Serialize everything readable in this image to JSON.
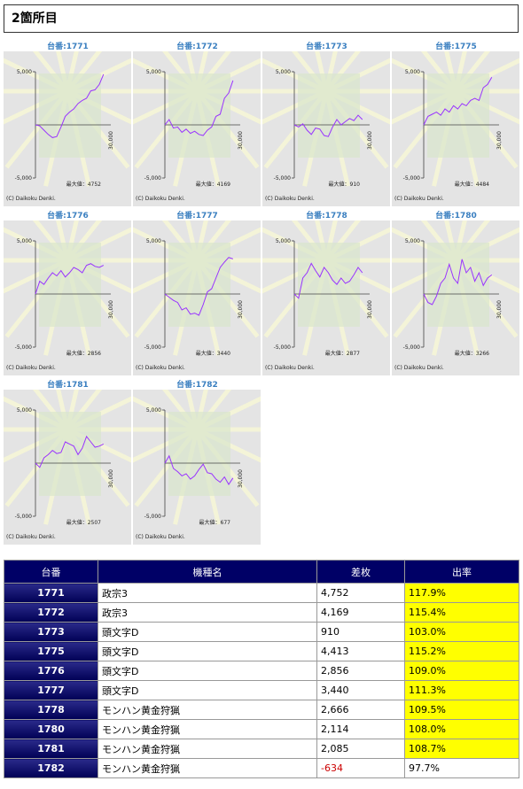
{
  "header": {
    "title": "2箇所目"
  },
  "graph_axis": {
    "yticks": [
      {
        "value": 5000,
        "label": "5,000"
      },
      {
        "value": -5000,
        "label": "-5,000"
      }
    ],
    "xmax": {
      "value": 30000,
      "label": "30,000"
    },
    "credit": "(C) Daikoku Denki.",
    "line_color": "#9933ff"
  },
  "graphs": [
    {
      "label": "台番:1771",
      "max_text": "最大値：4752",
      "values": [
        0,
        -100,
        -500,
        -900,
        -1200,
        -1100,
        -200,
        800,
        1200,
        1500,
        2000,
        2300,
        2500,
        3200,
        3300,
        3800,
        4752
      ]
    },
    {
      "label": "台番:1772",
      "max_text": "最大値：4169",
      "values": [
        0,
        500,
        -300,
        -200,
        -700,
        -400,
        -800,
        -600,
        -900,
        -1000,
        -500,
        -200,
        800,
        1000,
        2500,
        3000,
        4169
      ]
    },
    {
      "label": "台番:1773",
      "max_text": "最大値：910",
      "values": [
        0,
        -200,
        100,
        -500,
        -900,
        -300,
        -400,
        -1000,
        -1100,
        -200,
        500,
        0,
        300,
        600,
        400,
        910,
        500
      ]
    },
    {
      "label": "台番:1775",
      "max_text": "最大値：4484",
      "values": [
        0,
        800,
        1000,
        1200,
        900,
        1500,
        1200,
        1800,
        1500,
        2000,
        1800,
        2300,
        2500,
        2300,
        3500,
        3800,
        4484
      ]
    },
    {
      "label": "台番:1776",
      "max_text": "最大値：2856",
      "values": [
        0,
        1200,
        900,
        1500,
        2000,
        1700,
        2200,
        1600,
        2000,
        2500,
        2300,
        2000,
        2700,
        2856,
        2600,
        2500,
        2700
      ]
    },
    {
      "label": "台番:1777",
      "max_text": "最大値：3440",
      "values": [
        0,
        -300,
        -600,
        -800,
        -1500,
        -1300,
        -1900,
        -1800,
        -2000,
        -1000,
        200,
        500,
        1500,
        2500,
        3000,
        3440,
        3300
      ]
    },
    {
      "label": "台番:1778",
      "max_text": "最大値：2877",
      "values": [
        0,
        -400,
        1500,
        2000,
        2877,
        2200,
        1600,
        2500,
        2000,
        1300,
        900,
        1500,
        1000,
        1200,
        1800,
        2500,
        2000
      ]
    },
    {
      "label": "台番:1780",
      "max_text": "最大値：3266",
      "values": [
        0,
        -800,
        -1000,
        -200,
        1000,
        1500,
        2800,
        1500,
        1000,
        3266,
        2000,
        2500,
        1200,
        2000,
        800,
        1500,
        1800
      ]
    },
    {
      "label": "台番:1781",
      "max_text": "最大値：2507",
      "values": [
        0,
        -400,
        500,
        800,
        1200,
        900,
        1000,
        2000,
        1800,
        1600,
        800,
        1400,
        2507,
        2000,
        1500,
        1600,
        1800
      ]
    },
    {
      "label": "台番:1782",
      "max_text": "最大値：677",
      "values": [
        0,
        677,
        -500,
        -800,
        -1200,
        -1000,
        -1500,
        -1200,
        -600,
        -100,
        -900,
        -1000,
        -1500,
        -1800,
        -1300,
        -2000,
        -1400
      ]
    }
  ],
  "table": {
    "header": [
      "台番",
      "機種名",
      "差枚",
      "出率"
    ],
    "rows": [
      [
        "1771",
        "政宗3",
        "4,752",
        "117.9%"
      ],
      [
        "1772",
        "政宗3",
        "4,169",
        "115.4%"
      ],
      [
        "1773",
        "頭文字D",
        "910",
        "103.0%"
      ],
      [
        "1775",
        "頭文字D",
        "4,413",
        "115.2%"
      ],
      [
        "1776",
        "頭文字D",
        "2,856",
        "109.0%"
      ],
      [
        "1777",
        "頭文字D",
        "3,440",
        "111.3%"
      ],
      [
        "1778",
        "モンハン黄金狩猟",
        "2,666",
        "109.5%"
      ],
      [
        "1780",
        "モンハン黄金狩猟",
        "2,114",
        "108.0%"
      ],
      [
        "1781",
        "モンハン黄金狩猟",
        "2,085",
        "108.7%"
      ],
      [
        "1782",
        "モンハン黄金狩猟",
        "-634",
        "97.7%"
      ]
    ],
    "highlight": [
      true,
      true,
      true,
      true,
      true,
      true,
      true,
      true,
      true,
      false
    ],
    "highlight_color": "#ffff00"
  }
}
